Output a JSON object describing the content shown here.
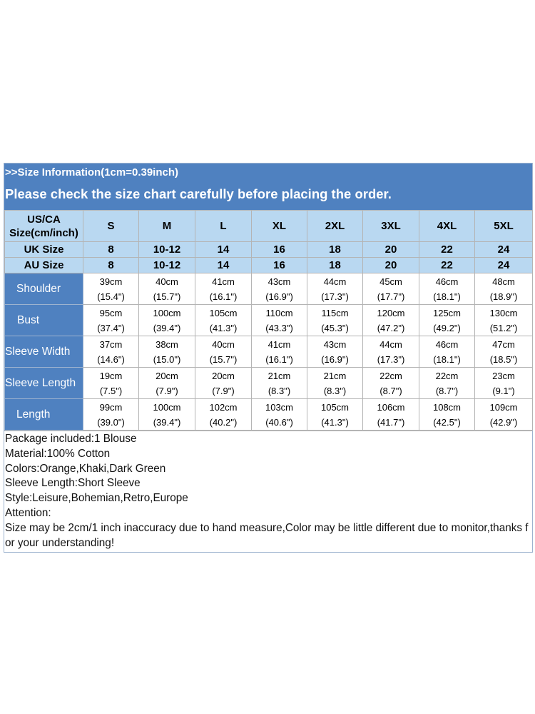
{
  "banner": {
    "line1": ">>Size Information(1cm=0.39inch)",
    "line2": "Please check the size chart carefully before placing the order."
  },
  "header_rows": [
    {
      "label": "US/CA Size(cm/inch)",
      "cells": [
        "S",
        "M",
        "L",
        "XL",
        "2XL",
        "3XL",
        "4XL",
        "5XL"
      ]
    },
    {
      "label": "UK Size",
      "cells": [
        "8",
        "10-12",
        "14",
        "16",
        "18",
        "20",
        "22",
        "24"
      ]
    },
    {
      "label": "AU Size",
      "cells": [
        "8",
        "10-12",
        "14",
        "16",
        "18",
        "20",
        "22",
        "24"
      ]
    }
  ],
  "header_label_lines": [
    "US/CA",
    "Size(cm/inch)"
  ],
  "measurements": [
    {
      "label": "Shoulder",
      "cm": [
        "39cm",
        "40cm",
        "41cm",
        "43cm",
        "44cm",
        "45cm",
        "46cm",
        "48cm"
      ],
      "inch": [
        "(15.4\")",
        "(15.7\")",
        "(16.1\")",
        "(16.9\")",
        "(17.3\")",
        "(17.7\")",
        "(18.1\")",
        "(18.9\")"
      ]
    },
    {
      "label": "Bust",
      "cm": [
        "95cm",
        "100cm",
        "105cm",
        "110cm",
        "115cm",
        "120cm",
        "125cm",
        "130cm"
      ],
      "inch": [
        "(37.4\")",
        "(39.4\")",
        "(41.3\")",
        "(43.3\")",
        "(45.3\")",
        "(47.2\")",
        "(49.2\")",
        "(51.2\")"
      ]
    },
    {
      "label": "Sleeve Width",
      "cm": [
        "37cm",
        "38cm",
        "40cm",
        "41cm",
        "43cm",
        "44cm",
        "46cm",
        "47cm"
      ],
      "inch": [
        "(14.6\")",
        "(15.0\")",
        "(15.7\")",
        "(16.1\")",
        "(16.9\")",
        "(17.3\")",
        "(18.1\")",
        "(18.5\")"
      ]
    },
    {
      "label": "Sleeve Length",
      "cm": [
        "19cm",
        "20cm",
        "20cm",
        "21cm",
        "21cm",
        "22cm",
        "22cm",
        "23cm"
      ],
      "inch": [
        "(7.5\")",
        "(7.9\")",
        "(7.9\")",
        "(8.3\")",
        "(8.3\")",
        "(8.7\")",
        "(8.7\")",
        "(9.1\")"
      ]
    },
    {
      "label": "Length",
      "cm": [
        "99cm",
        "100cm",
        "102cm",
        "103cm",
        "105cm",
        "106cm",
        "108cm",
        "109cm"
      ],
      "inch": [
        "(39.0\")",
        "(39.4\")",
        "(40.2\")",
        "(40.6\")",
        "(41.3\")",
        "(41.7\")",
        "(42.5\")",
        "(42.9\")"
      ]
    }
  ],
  "notes": [
    "Package included:1 Blouse",
    "Material:100% Cotton",
    "Colors:Orange,Khaki,Dark Green",
    "Sleeve Length:Short Sleeve",
    "Style:Leisure,Bohemian,Retro,Europe",
    "Attention:",
    "Size may be 2cm/1 inch inaccuracy due to hand measure,Color may be little different due to monitor,thanks for your understanding!"
  ],
  "colors": {
    "banner_bg": "#4f81c0",
    "header_bg": "#b9d8f1",
    "label_bg": "#4f81c0"
  }
}
